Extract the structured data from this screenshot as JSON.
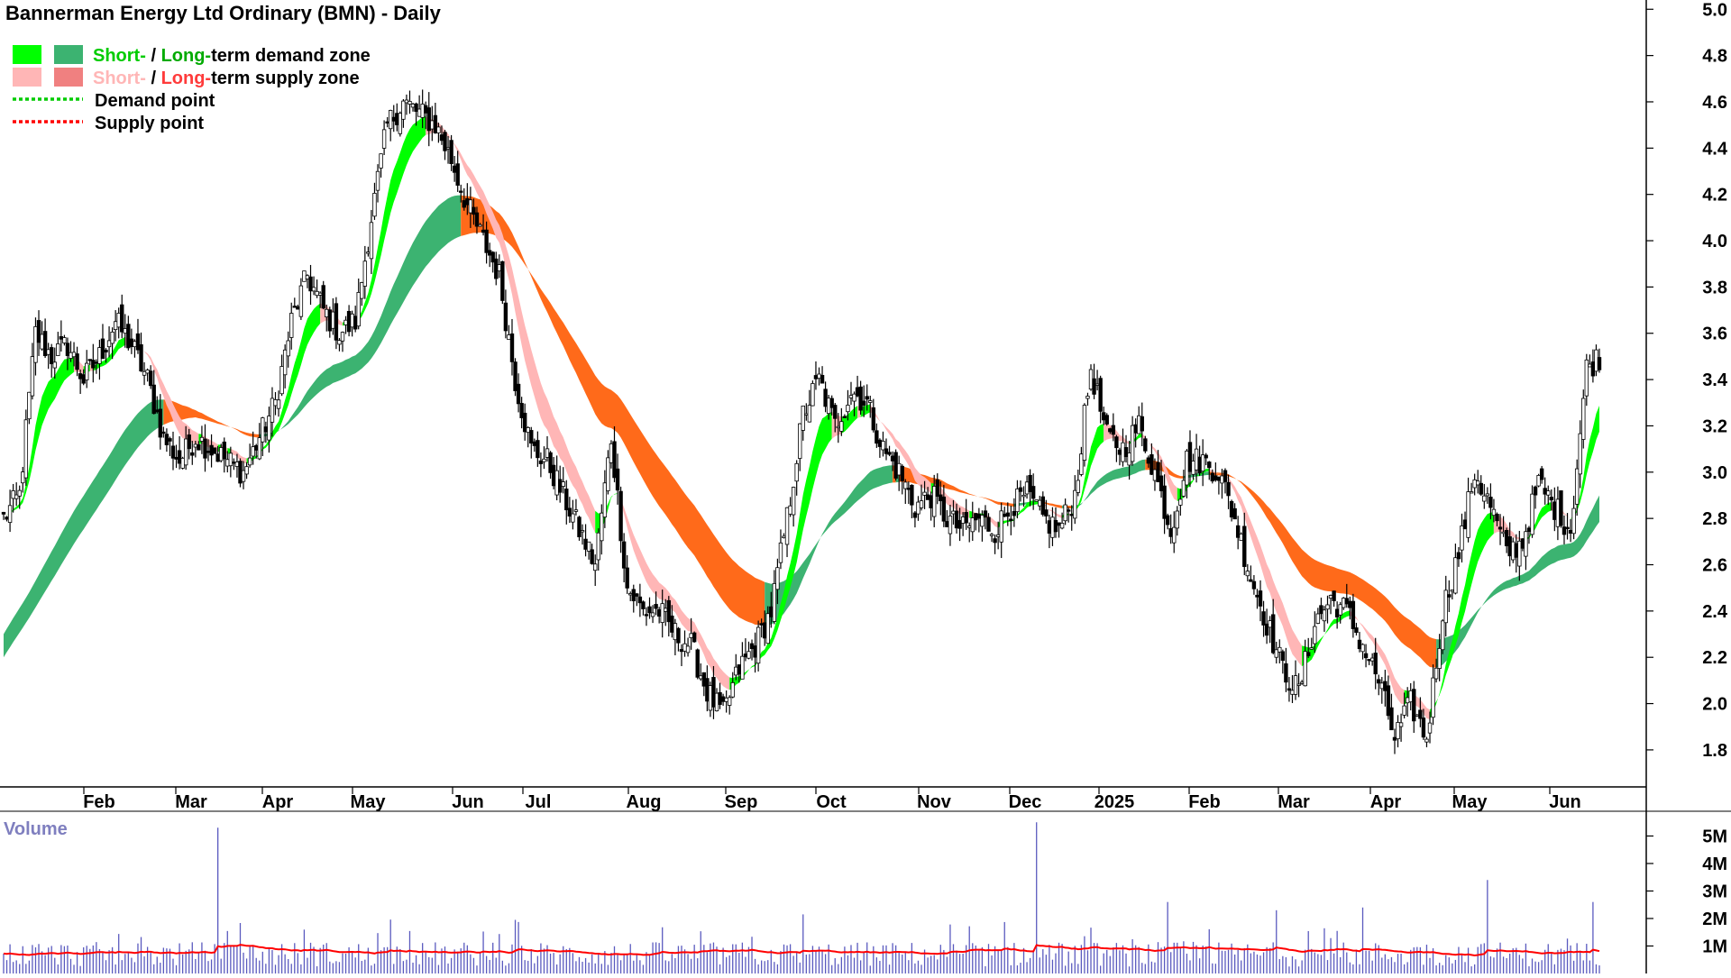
{
  "chart_data": [
    {
      "type": "candlestick",
      "title": "Bannerman Energy Ltd Ordinary (BMN) - Daily",
      "ylim": [
        1.64,
        5.04
      ],
      "y_ticks": [
        "1.8",
        "2.0",
        "2.2",
        "2.4",
        "2.6",
        "2.8",
        "3.0",
        "3.2",
        "3.4",
        "3.6",
        "3.8",
        "4.0",
        "4.2",
        "4.4",
        "4.6",
        "4.8",
        "5.0"
      ],
      "x_ticks": [
        "Feb",
        "Mar",
        "Apr",
        "May",
        "Jun",
        "Jul",
        "Aug",
        "Sep",
        "Oct",
        "Nov",
        "Dec",
        "2025",
        "Feb",
        "Mar",
        "Apr",
        "May",
        "Jun"
      ],
      "legend": [
        {
          "label_short": "Short-",
          "label_sep": " / ",
          "label_long": "Long-",
          "label_rest": "term demand zone",
          "short_color": "#00ff00",
          "long_color": "#3cb371"
        },
        {
          "label_short": "Short-",
          "label_sep": " / ",
          "label_long": "Long-",
          "label_rest": "term supply zone",
          "short_color": "#ffb6b6",
          "long_color": "#f08080"
        },
        {
          "label": "Demand point",
          "color": "#00cc00"
        },
        {
          "label": "Supply point",
          "color": "#ff0000"
        }
      ],
      "close_path": [
        [
          0,
          2.8
        ],
        [
          5,
          2.9
        ],
        [
          10,
          3.6
        ],
        [
          15,
          3.5
        ],
        [
          20,
          3.55
        ],
        [
          25,
          3.4
        ],
        [
          30,
          3.5
        ],
        [
          35,
          3.65
        ],
        [
          40,
          3.55
        ],
        [
          45,
          3.4
        ],
        [
          50,
          3.15
        ],
        [
          55,
          3.05
        ],
        [
          60,
          3.15
        ],
        [
          65,
          3.1
        ],
        [
          70,
          3.05
        ],
        [
          75,
          3.0
        ],
        [
          80,
          3.15
        ],
        [
          85,
          3.3
        ],
        [
          90,
          3.65
        ],
        [
          95,
          3.85
        ],
        [
          100,
          3.7
        ],
        [
          105,
          3.6
        ],
        [
          110,
          3.65
        ],
        [
          115,
          4.1
        ],
        [
          120,
          4.5
        ],
        [
          125,
          4.6
        ],
        [
          130,
          4.55
        ],
        [
          135,
          4.5
        ],
        [
          140,
          4.35
        ],
        [
          145,
          4.15
        ],
        [
          150,
          4.0
        ],
        [
          155,
          3.85
        ],
        [
          160,
          3.4
        ],
        [
          165,
          3.1
        ],
        [
          170,
          3.05
        ],
        [
          175,
          2.9
        ],
        [
          180,
          2.75
        ],
        [
          185,
          2.6
        ],
        [
          190,
          3.15
        ],
        [
          195,
          2.5
        ],
        [
          200,
          2.4
        ],
        [
          205,
          2.4
        ],
        [
          210,
          2.3
        ],
        [
          215,
          2.25
        ],
        [
          220,
          2.05
        ],
        [
          225,
          1.95
        ],
        [
          230,
          2.15
        ],
        [
          235,
          2.25
        ],
        [
          240,
          2.4
        ],
        [
          245,
          2.8
        ],
        [
          250,
          3.25
        ],
        [
          255,
          3.4
        ],
        [
          260,
          3.2
        ],
        [
          265,
          3.35
        ],
        [
          270,
          3.3
        ],
        [
          275,
          3.1
        ],
        [
          280,
          3.0
        ],
        [
          285,
          2.85
        ],
        [
          290,
          2.9
        ],
        [
          295,
          2.8
        ],
        [
          300,
          2.75
        ],
        [
          305,
          2.8
        ],
        [
          310,
          2.75
        ],
        [
          315,
          2.85
        ],
        [
          320,
          2.9
        ],
        [
          325,
          2.8
        ],
        [
          330,
          2.75
        ],
        [
          335,
          2.9
        ],
        [
          340,
          3.45
        ],
        [
          345,
          3.15
        ],
        [
          350,
          3.1
        ],
        [
          355,
          3.2
        ],
        [
          360,
          3.0
        ],
        [
          365,
          2.75
        ],
        [
          370,
          3.05
        ],
        [
          375,
          3.05
        ],
        [
          380,
          3.0
        ],
        [
          385,
          2.8
        ],
        [
          390,
          2.55
        ],
        [
          395,
          2.35
        ],
        [
          400,
          2.15
        ],
        [
          405,
          2.05
        ],
        [
          410,
          2.35
        ],
        [
          415,
          2.45
        ],
        [
          420,
          2.4
        ],
        [
          425,
          2.25
        ],
        [
          430,
          2.1
        ],
        [
          435,
          1.85
        ],
        [
          440,
          2.0
        ],
        [
          445,
          1.85
        ],
        [
          450,
          2.4
        ],
        [
          455,
          2.65
        ],
        [
          460,
          3.0
        ],
        [
          465,
          2.85
        ],
        [
          470,
          2.65
        ],
        [
          475,
          2.7
        ],
        [
          480,
          2.95
        ],
        [
          485,
          2.85
        ],
        [
          490,
          2.75
        ],
        [
          495,
          3.45
        ],
        [
          499,
          3.5
        ]
      ],
      "series": [
        {
          "name": "Short-term demand zone",
          "color": "#00ff00",
          "segments": [
            [
              0,
              68
            ],
            [
              86,
              120
            ],
            [
              135,
              160
            ],
            [
              274,
              290
            ],
            [
              355,
              372
            ],
            [
              433,
              499
            ]
          ]
        },
        {
          "name": "Long-term demand zone",
          "color": "#3cb371",
          "segments": [
            [
              0,
              165
            ],
            [
              264,
              290
            ],
            [
              355,
              372
            ]
          ]
        },
        {
          "name": "Short-term supply zone",
          "color": "#ffb6b6",
          "segments": [
            [
              52,
              70
            ],
            [
              152,
              235
            ],
            [
              300,
              340
            ],
            [
              390,
              450
            ]
          ]
        },
        {
          "name": "Long-term supply zone",
          "color": "#f08080",
          "segments": [
            [
              395,
              499
            ]
          ]
        }
      ]
    },
    {
      "type": "bar",
      "title": "Volume",
      "ylim": [
        0,
        5.9
      ],
      "y_ticks": [
        "1M",
        "2M",
        "3M",
        "4M",
        "5M"
      ],
      "spikes": [
        [
          67,
          5.3
        ],
        [
          160,
          1.95
        ],
        [
          250,
          2.15
        ],
        [
          323,
          5.5
        ],
        [
          364,
          2.6
        ],
        [
          398,
          2.3
        ],
        [
          425,
          2.4
        ],
        [
          464,
          3.4
        ],
        [
          497,
          2.6
        ]
      ],
      "avg_line_color": "#ff0000"
    }
  ]
}
